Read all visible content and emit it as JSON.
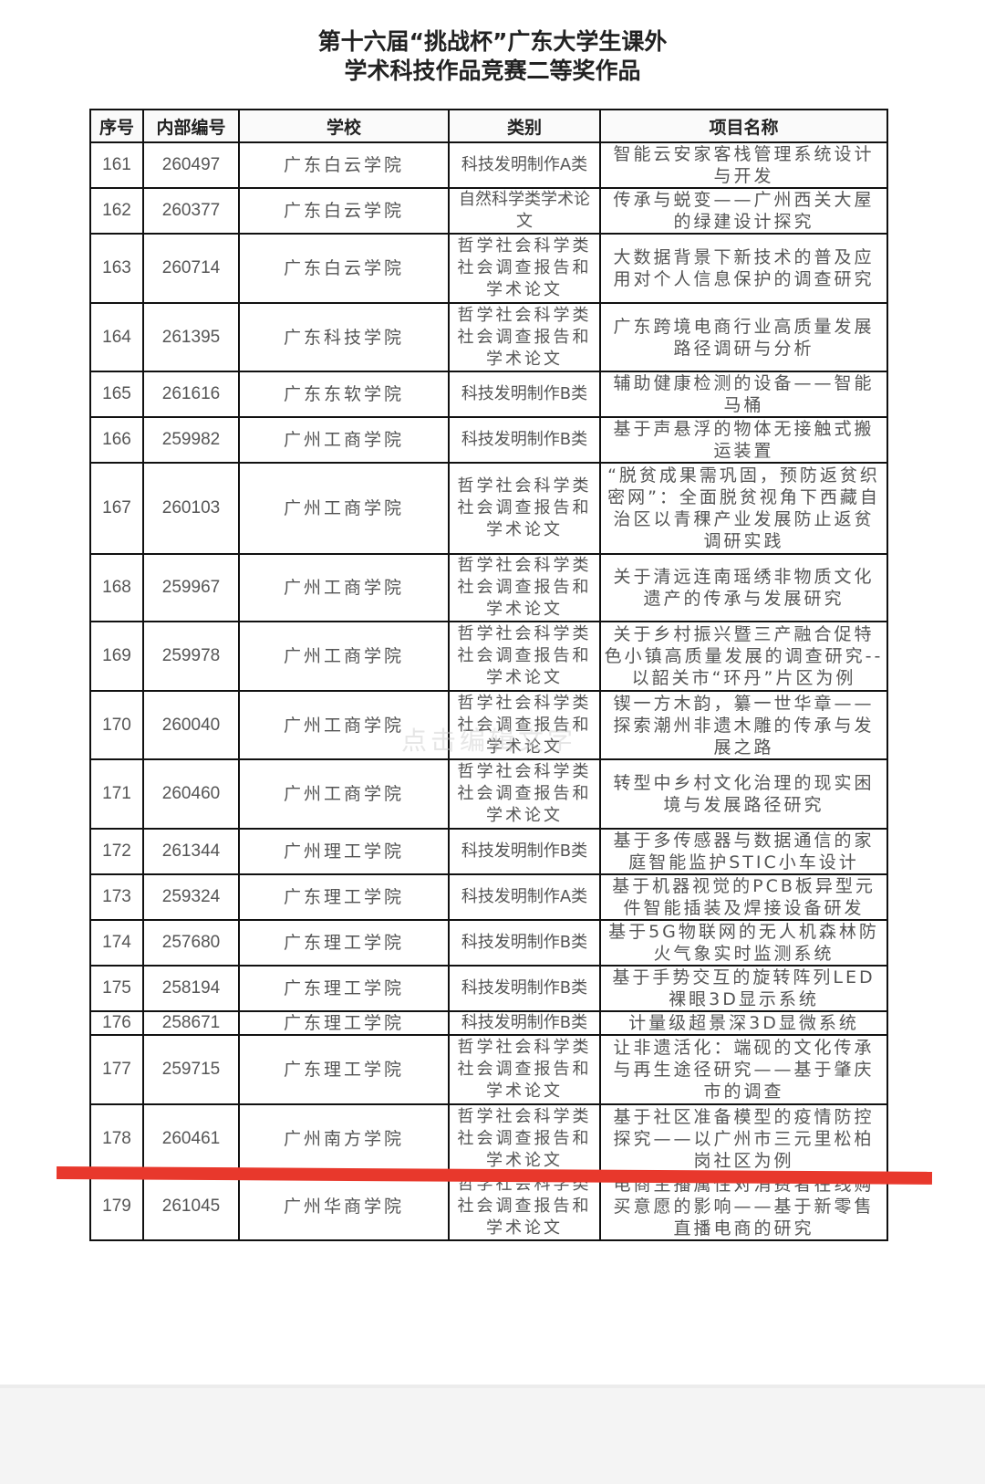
{
  "document": {
    "title_line1": "第十六届“挑战杯”广东大学生课外",
    "title_line2": "学术科技作品竞赛二等奖作品",
    "watermark": "点击编辑文字",
    "annotation_color": "#e8382c"
  },
  "table": {
    "headers": [
      "序号",
      "内部编号",
      "学校",
      "类别",
      "项目名称"
    ],
    "rows": [
      {
        "no": "161",
        "code": "260497",
        "school": "广东白云学院",
        "category": "科技发明制作A类",
        "project": "智能云安家客栈管理系统设计与开发"
      },
      {
        "no": "162",
        "code": "260377",
        "school": "广东白云学院",
        "category": "自然科学类学术论文",
        "project": "传承与蜕变——广州西关大屋的绿建设计探究"
      },
      {
        "no": "163",
        "code": "260714",
        "school": "广东白云学院",
        "category": "哲学社会科学类社会调查报告和学术论文",
        "project": "大数据背景下新技术的普及应用对个人信息保护的调查研究"
      },
      {
        "no": "164",
        "code": "261395",
        "school": "广东科技学院",
        "category": "哲学社会科学类社会调查报告和学术论文",
        "project": "广东跨境电商行业高质量发展路径调研与分析"
      },
      {
        "no": "165",
        "code": "261616",
        "school": "广东东软学院",
        "category": "科技发明制作B类",
        "project": "辅助健康检测的设备——智能马桶"
      },
      {
        "no": "166",
        "code": "259982",
        "school": "广州工商学院",
        "category": "科技发明制作B类",
        "project": "基于声悬浮的物体无接触式搬运装置"
      },
      {
        "no": "167",
        "code": "260103",
        "school": "广州工商学院",
        "category": "哲学社会科学类社会调查报告和学术论文",
        "project": "“脱贫成果需巩固，预防返贫织密网”：全面脱贫视角下西藏自治区以青稞产业发展防止返贫调研实践"
      },
      {
        "no": "168",
        "code": "259967",
        "school": "广州工商学院",
        "category": "哲学社会科学类社会调查报告和学术论文",
        "project": "关于清远连南瑶绣非物质文化遗产的传承与发展研究"
      },
      {
        "no": "169",
        "code": "259978",
        "school": "广州工商学院",
        "category": "哲学社会科学类社会调查报告和学术论文",
        "project": "关于乡村振兴暨三产融合促特色小镇高质量发展的调查研究--以韶关市“环丹”片区为例"
      },
      {
        "no": "170",
        "code": "260040",
        "school": "广州工商学院",
        "category": "哲学社会科学类社会调查报告和学术论文",
        "project": "锲一方木韵，纂一世华章——探索潮州非遗木雕的传承与发展之路"
      },
      {
        "no": "171",
        "code": "260460",
        "school": "广州工商学院",
        "category": "哲学社会科学类社会调查报告和学术论文",
        "project": "转型中乡村文化治理的现实困境与发展路径研究"
      },
      {
        "no": "172",
        "code": "261344",
        "school": "广州理工学院",
        "category": "科技发明制作B类",
        "project": "基于多传感器与数据通信的家庭智能监护STIC小车设计"
      },
      {
        "no": "173",
        "code": "259324",
        "school": "广东理工学院",
        "category": "科技发明制作A类",
        "project": "基于机器视觉的PCB板异型元件智能插装及焊接设备研发"
      },
      {
        "no": "174",
        "code": "257680",
        "school": "广东理工学院",
        "category": "科技发明制作B类",
        "project": "基于5G物联网的无人机森林防火气象实时监测系统"
      },
      {
        "no": "175",
        "code": "258194",
        "school": "广东理工学院",
        "category": "科技发明制作B类",
        "project": "基于手势交互的旋转阵列LED裸眼3D显示系统"
      },
      {
        "no": "176",
        "code": "258671",
        "school": "广东理工学院",
        "category": "科技发明制作B类",
        "project": "计量级超景深3D显微系统"
      },
      {
        "no": "177",
        "code": "259715",
        "school": "广东理工学院",
        "category": "哲学社会科学类社会调查报告和学术论文",
        "project": "让非遗活化：端砚的文化传承与再生途径研究——基于肇庆市的调查"
      },
      {
        "no": "178",
        "code": "260461",
        "school": "广州南方学院",
        "category": "哲学社会科学类社会调查报告和学术论文",
        "project": "基于社区准备模型的疫情防控探究——以广州市三元里松柏岗社区为例"
      },
      {
        "no": "179",
        "code": "261045",
        "school": "广州华商学院",
        "category": "哲学社会科学类社会调查报告和学术论文",
        "project": "电商主播属性对消费者在线购买意愿的影响——基于新零售直播电商的研究"
      }
    ]
  }
}
